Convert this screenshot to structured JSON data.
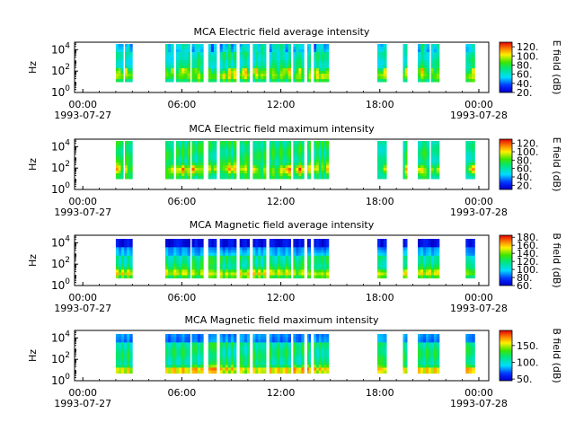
{
  "chart_data": [
    {
      "type": "heatmap",
      "title": "MCA  Electric field average intensity",
      "ylabel": "Hz",
      "yscale": "log",
      "ylim": [
        1,
        50000
      ],
      "y_tick_labels": [
        {
          "base": "10",
          "exp": "0"
        },
        {
          "base": "10",
          "exp": "2"
        },
        {
          "base": "10",
          "exp": "4"
        }
      ],
      "x_range_hours": [
        -0.5,
        24.6
      ],
      "x_tick_labels": [
        {
          "hour": 0,
          "label": "00:00",
          "date": "1993-07-27"
        },
        {
          "hour": 6,
          "label": "06:00",
          "date": ""
        },
        {
          "hour": 12,
          "label": "12:00",
          "date": ""
        },
        {
          "hour": 18,
          "label": "18:00",
          "date": ""
        },
        {
          "hour": 24,
          "label": "00:00",
          "date": "1993-07-28"
        }
      ],
      "colorbar": {
        "label": "E field (dB)",
        "range": [
          20,
          130
        ],
        "ticks": [
          "20.",
          "40.",
          "60.",
          "80.",
          "100.",
          "120."
        ]
      },
      "segments_hours": [
        [
          2.0,
          2.45
        ],
        [
          2.55,
          3.0
        ],
        [
          5.0,
          5.5
        ],
        [
          5.65,
          6.5
        ],
        [
          6.6,
          7.3
        ],
        [
          7.6,
          8.1
        ],
        [
          8.3,
          9.3
        ],
        [
          9.5,
          10.1
        ],
        [
          10.3,
          11.1
        ],
        [
          11.3,
          12.6
        ],
        [
          12.75,
          13.4
        ],
        [
          13.6,
          13.8
        ],
        [
          14.0,
          14.9
        ],
        [
          17.85,
          18.4
        ],
        [
          19.4,
          19.65
        ],
        [
          20.3,
          21.0
        ],
        [
          21.1,
          21.6
        ],
        [
          23.2,
          23.75
        ]
      ],
      "profile": "e_avg"
    },
    {
      "type": "heatmap",
      "title": "MCA  Electric field maximum intensity",
      "ylabel": "Hz",
      "yscale": "log",
      "ylim": [
        1,
        50000
      ],
      "y_tick_labels": [
        {
          "base": "10",
          "exp": "0"
        },
        {
          "base": "10",
          "exp": "2"
        },
        {
          "base": "10",
          "exp": "4"
        }
      ],
      "x_range_hours": [
        -0.5,
        24.6
      ],
      "x_tick_labels": [
        {
          "hour": 0,
          "label": "00:00",
          "date": "1993-07-27"
        },
        {
          "hour": 6,
          "label": "06:00",
          "date": ""
        },
        {
          "hour": 12,
          "label": "12:00",
          "date": ""
        },
        {
          "hour": 18,
          "label": "18:00",
          "date": ""
        },
        {
          "hour": 24,
          "label": "00:00",
          "date": "1993-07-28"
        }
      ],
      "colorbar": {
        "label": "E field (dB)",
        "range": [
          10,
          130
        ],
        "ticks": [
          "20.",
          "40.",
          "60.",
          "80.",
          "100.",
          "120."
        ]
      },
      "segments_hours": [
        [
          2.0,
          2.45
        ],
        [
          2.55,
          3.0
        ],
        [
          5.0,
          5.5
        ],
        [
          5.65,
          6.5
        ],
        [
          6.6,
          7.3
        ],
        [
          7.6,
          8.1
        ],
        [
          8.3,
          9.3
        ],
        [
          9.5,
          10.1
        ],
        [
          10.3,
          11.1
        ],
        [
          11.3,
          12.6
        ],
        [
          12.75,
          13.4
        ],
        [
          13.6,
          13.8
        ],
        [
          14.0,
          14.9
        ],
        [
          17.85,
          18.4
        ],
        [
          19.4,
          19.65
        ],
        [
          20.3,
          21.0
        ],
        [
          21.1,
          21.6
        ],
        [
          23.2,
          23.75
        ]
      ],
      "profile": "e_max"
    },
    {
      "type": "heatmap",
      "title": "MCA  Magnetic field average intensity",
      "ylabel": "Hz",
      "yscale": "log",
      "ylim": [
        1,
        50000
      ],
      "y_tick_labels": [
        {
          "base": "10",
          "exp": "0"
        },
        {
          "base": "10",
          "exp": "2"
        },
        {
          "base": "10",
          "exp": "4"
        }
      ],
      "x_range_hours": [
        -0.5,
        24.6
      ],
      "x_tick_labels": [
        {
          "hour": 0,
          "label": "00:00",
          "date": "1993-07-27"
        },
        {
          "hour": 6,
          "label": "06:00",
          "date": ""
        },
        {
          "hour": 12,
          "label": "12:00",
          "date": ""
        },
        {
          "hour": 18,
          "label": "18:00",
          "date": ""
        },
        {
          "hour": 24,
          "label": "00:00",
          "date": "1993-07-28"
        }
      ],
      "colorbar": {
        "label": "B field (dB)",
        "range": [
          60,
          185
        ],
        "ticks": [
          "60.",
          "80.",
          "100.",
          "120.",
          "140.",
          "160.",
          "180."
        ]
      },
      "segments_hours": [
        [
          2.0,
          3.0
        ],
        [
          5.0,
          6.5
        ],
        [
          6.6,
          7.3
        ],
        [
          7.6,
          8.1
        ],
        [
          8.3,
          9.3
        ],
        [
          9.5,
          10.1
        ],
        [
          10.3,
          11.1
        ],
        [
          11.3,
          12.6
        ],
        [
          12.75,
          13.4
        ],
        [
          13.6,
          13.8
        ],
        [
          14.0,
          14.9
        ],
        [
          17.85,
          18.4
        ],
        [
          19.4,
          19.65
        ],
        [
          20.3,
          21.6
        ],
        [
          23.2,
          23.75
        ]
      ],
      "profile": "b_avg"
    },
    {
      "type": "heatmap",
      "title": "MCA  Magnetic field maximum intensity",
      "ylabel": "Hz",
      "yscale": "log",
      "ylim": [
        1,
        50000
      ],
      "y_tick_labels": [
        {
          "base": "10",
          "exp": "0"
        },
        {
          "base": "10",
          "exp": "2"
        },
        {
          "base": "10",
          "exp": "4"
        }
      ],
      "x_range_hours": [
        -0.5,
        24.6
      ],
      "x_tick_labels": [
        {
          "hour": 0,
          "label": "00:00",
          "date": "1993-07-27"
        },
        {
          "hour": 6,
          "label": "06:00",
          "date": ""
        },
        {
          "hour": 12,
          "label": "12:00",
          "date": ""
        },
        {
          "hour": 18,
          "label": "18:00",
          "date": ""
        },
        {
          "hour": 24,
          "label": "00:00",
          "date": "1993-07-28"
        }
      ],
      "colorbar": {
        "label": "B field (dB)",
        "range": [
          45,
          195
        ],
        "ticks": [
          "50.",
          "100.",
          "150."
        ]
      },
      "segments_hours": [
        [
          2.0,
          3.0
        ],
        [
          5.0,
          6.5
        ],
        [
          6.6,
          7.3
        ],
        [
          7.6,
          8.1
        ],
        [
          8.3,
          9.3
        ],
        [
          9.5,
          10.1
        ],
        [
          10.3,
          11.1
        ],
        [
          11.3,
          12.6
        ],
        [
          12.75,
          13.4
        ],
        [
          13.6,
          13.8
        ],
        [
          14.0,
          14.9
        ],
        [
          17.85,
          18.4
        ],
        [
          19.4,
          19.65
        ],
        [
          20.3,
          21.6
        ],
        [
          23.2,
          23.75
        ]
      ],
      "profile": "b_max"
    }
  ]
}
